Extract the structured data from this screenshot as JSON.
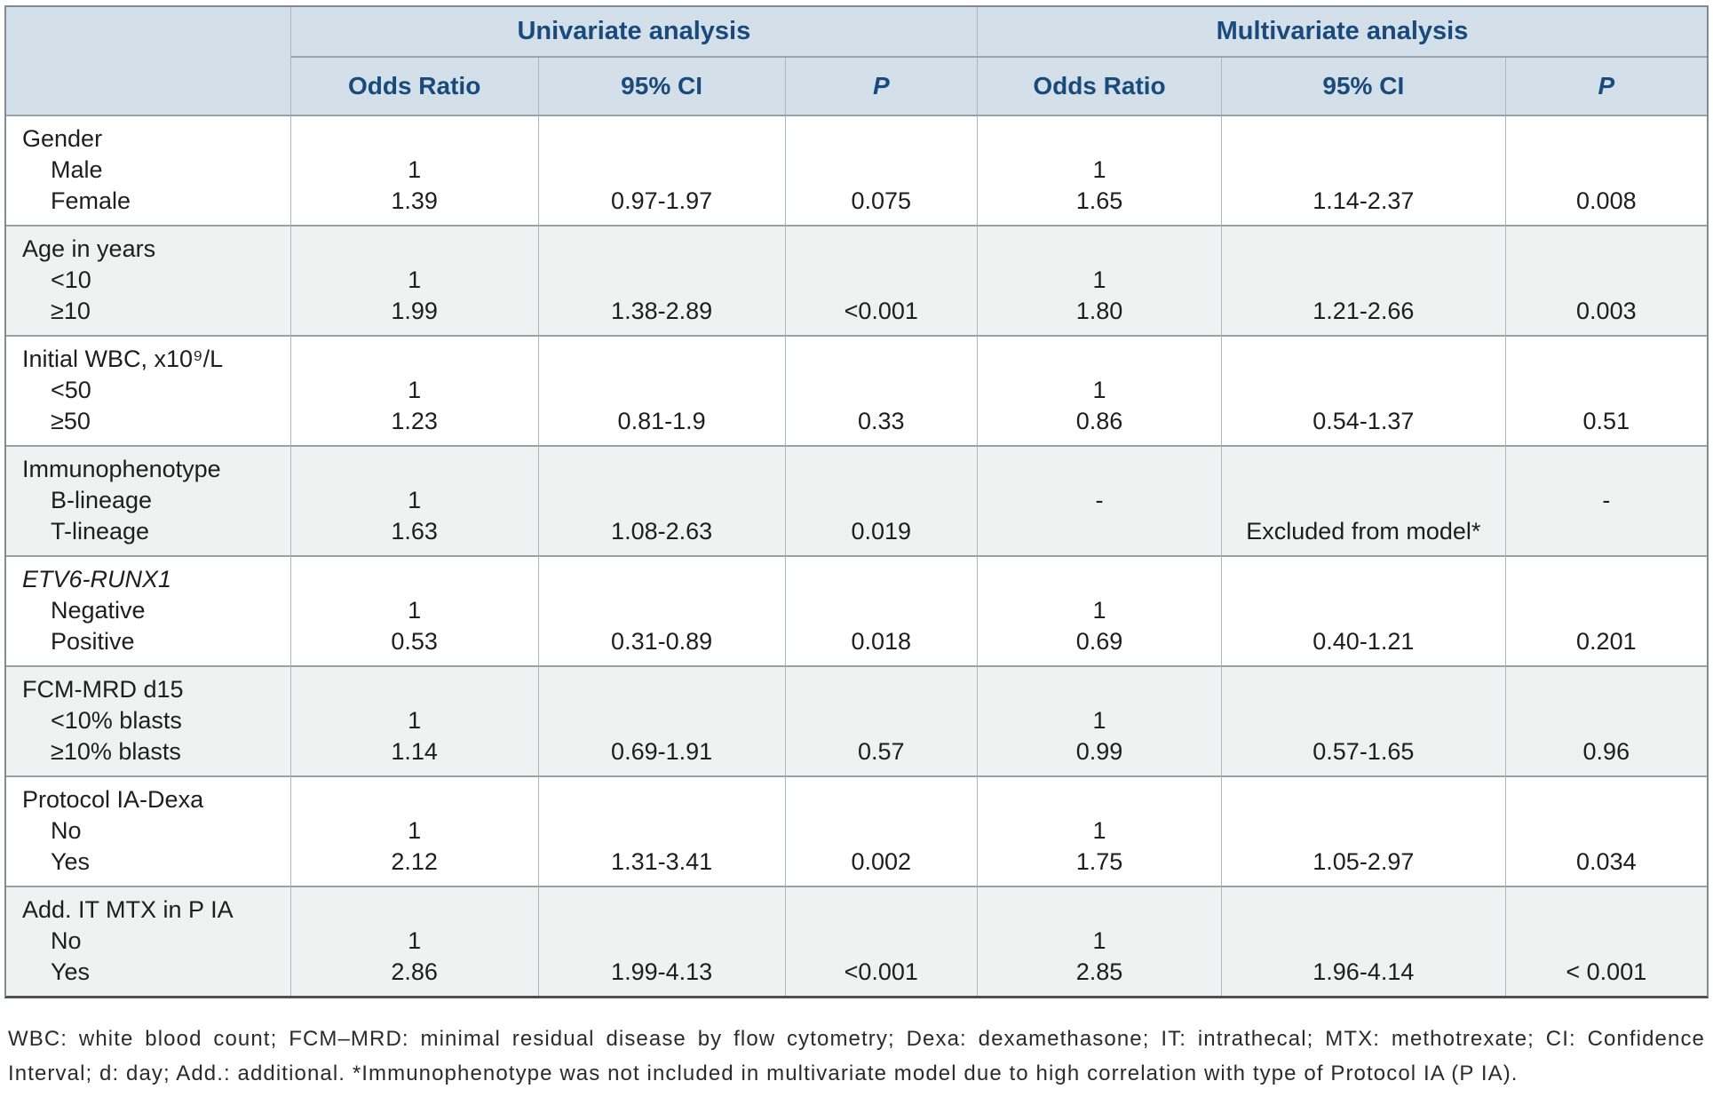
{
  "colors": {
    "header_bg": "#d3dfe9",
    "header_text": "#1a4a7c",
    "alt_row_bg": "#f0f1f1",
    "border_gray": "#9aa1a7"
  },
  "table": {
    "group_headers": [
      "Univariate analysis",
      "Multivariate analysis"
    ],
    "sub_headers": [
      "Odds Ratio",
      "95% CI",
      "P",
      "Odds Ratio",
      "95% CI",
      "P"
    ],
    "rows": [
      {
        "variable": "Gender",
        "italic": false,
        "levels": [
          "Male",
          "Female"
        ],
        "uni": {
          "or": [
            "1",
            "1.39"
          ],
          "ci": [
            "",
            "0.97-1.97"
          ],
          "p": [
            "",
            "0.075"
          ]
        },
        "multi": {
          "or": [
            "1",
            "1.65"
          ],
          "ci": [
            "",
            "1.14-2.37"
          ],
          "p": [
            "",
            "0.008"
          ]
        }
      },
      {
        "variable": "Age in years",
        "italic": false,
        "levels": [
          "<10",
          "≥10"
        ],
        "uni": {
          "or": [
            "1",
            "1.99"
          ],
          "ci": [
            "",
            "1.38-2.89"
          ],
          "p": [
            "",
            "<0.001"
          ]
        },
        "multi": {
          "or": [
            "1",
            "1.80"
          ],
          "ci": [
            "",
            "1.21-2.66"
          ],
          "p": [
            "",
            "0.003"
          ]
        }
      },
      {
        "variable": "Initial WBC, x10⁹/L",
        "italic": false,
        "levels": [
          "<50",
          "≥50"
        ],
        "uni": {
          "or": [
            "1",
            "1.23"
          ],
          "ci": [
            "",
            "0.81-1.9"
          ],
          "p": [
            "",
            "0.33"
          ]
        },
        "multi": {
          "or": [
            "1",
            "0.86"
          ],
          "ci": [
            "",
            "0.54-1.37"
          ],
          "p": [
            "",
            "0.51"
          ]
        }
      },
      {
        "variable": "Immunophenotype",
        "italic": false,
        "levels": [
          "B-lineage",
          "T-lineage"
        ],
        "uni": {
          "or": [
            "1",
            "1.63"
          ],
          "ci": [
            "",
            "1.08-2.63"
          ],
          "p": [
            "",
            "0.019"
          ]
        },
        "multi": {
          "or": [
            "-",
            ""
          ],
          "ci": [
            "",
            "Excluded from model*"
          ],
          "p": [
            "-",
            ""
          ]
        }
      },
      {
        "variable": "ETV6-RUNX1",
        "italic": true,
        "levels": [
          "Negative",
          "Positive"
        ],
        "uni": {
          "or": [
            "1",
            "0.53"
          ],
          "ci": [
            "",
            "0.31-0.89"
          ],
          "p": [
            "",
            "0.018"
          ]
        },
        "multi": {
          "or": [
            "1",
            "0.69"
          ],
          "ci": [
            "",
            "0.40-1.21"
          ],
          "p": [
            "",
            "0.201"
          ]
        }
      },
      {
        "variable": "FCM-MRD d15",
        "italic": false,
        "levels": [
          "<10% blasts",
          "≥10% blasts"
        ],
        "uni": {
          "or": [
            "1",
            "1.14"
          ],
          "ci": [
            "",
            "0.69-1.91"
          ],
          "p": [
            "",
            "0.57"
          ]
        },
        "multi": {
          "or": [
            "1",
            "0.99"
          ],
          "ci": [
            "",
            "0.57-1.65"
          ],
          "p": [
            "",
            "0.96"
          ]
        }
      },
      {
        "variable": "Protocol IA-Dexa",
        "italic": false,
        "levels": [
          "No",
          "Yes"
        ],
        "uni": {
          "or": [
            "1",
            "2.12"
          ],
          "ci": [
            "",
            "1.31-3.41"
          ],
          "p": [
            "",
            "0.002"
          ]
        },
        "multi": {
          "or": [
            "1",
            "1.75"
          ],
          "ci": [
            "",
            "1.05-2.97"
          ],
          "p": [
            "",
            "0.034"
          ]
        }
      },
      {
        "variable": "Add. IT MTX in P IA",
        "italic": false,
        "levels": [
          "No",
          "Yes"
        ],
        "uni": {
          "or": [
            "1",
            "2.86"
          ],
          "ci": [
            "",
            "1.99-4.13"
          ],
          "p": [
            "",
            "<0.001"
          ]
        },
        "multi": {
          "or": [
            "1",
            "2.85"
          ],
          "ci": [
            "",
            "1.96-4.14"
          ],
          "p": [
            "",
            "< 0.001"
          ]
        }
      }
    ],
    "footnote": "WBC: white blood count; FCM–MRD: minimal residual disease by flow cytometry; Dexa: dexamethasone; IT: intrathecal; MTX: methotrexate; CI: Confidence Interval; d: day; Add.: additional. *Immunophenotype was not included in multivariate model due to high correlation with type of Protocol IA (P IA)."
  }
}
